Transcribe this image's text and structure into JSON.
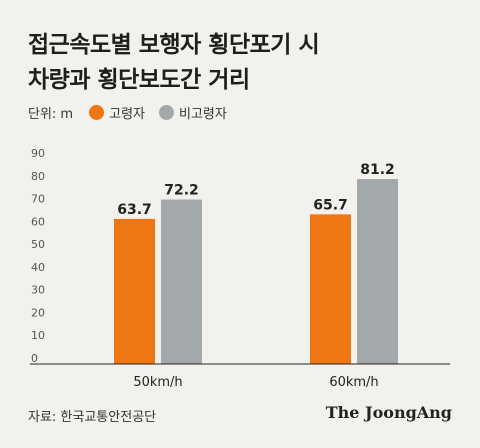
{
  "title_lines": [
    "접근속도별 보행자 횡단포기 시",
    "차량과 횡단보도간 거리"
  ],
  "legend": {
    "unit": "단위: m",
    "entries": [
      {
        "label": "고령자",
        "color": "#f07613"
      },
      {
        "label": "비고령자",
        "color": "#a3a8ab"
      }
    ]
  },
  "source": "자료: 한국교통안전공단",
  "brand": "The JoongAng",
  "chart_data": {
    "type": "bar",
    "categories": [
      "50km/h",
      "60km/h"
    ],
    "series": [
      {
        "name": "고령자",
        "values": [
          63.7,
          65.7
        ],
        "color": "#f07613"
      },
      {
        "name": "비고령자",
        "values": [
          72.2,
          81.2
        ],
        "color": "#a3a8ab"
      }
    ],
    "ylim": [
      0,
      90
    ],
    "yticks": [
      0,
      10,
      20,
      30,
      40,
      50,
      60,
      70,
      80,
      90
    ],
    "grid": false,
    "legend_position": "top-left"
  }
}
